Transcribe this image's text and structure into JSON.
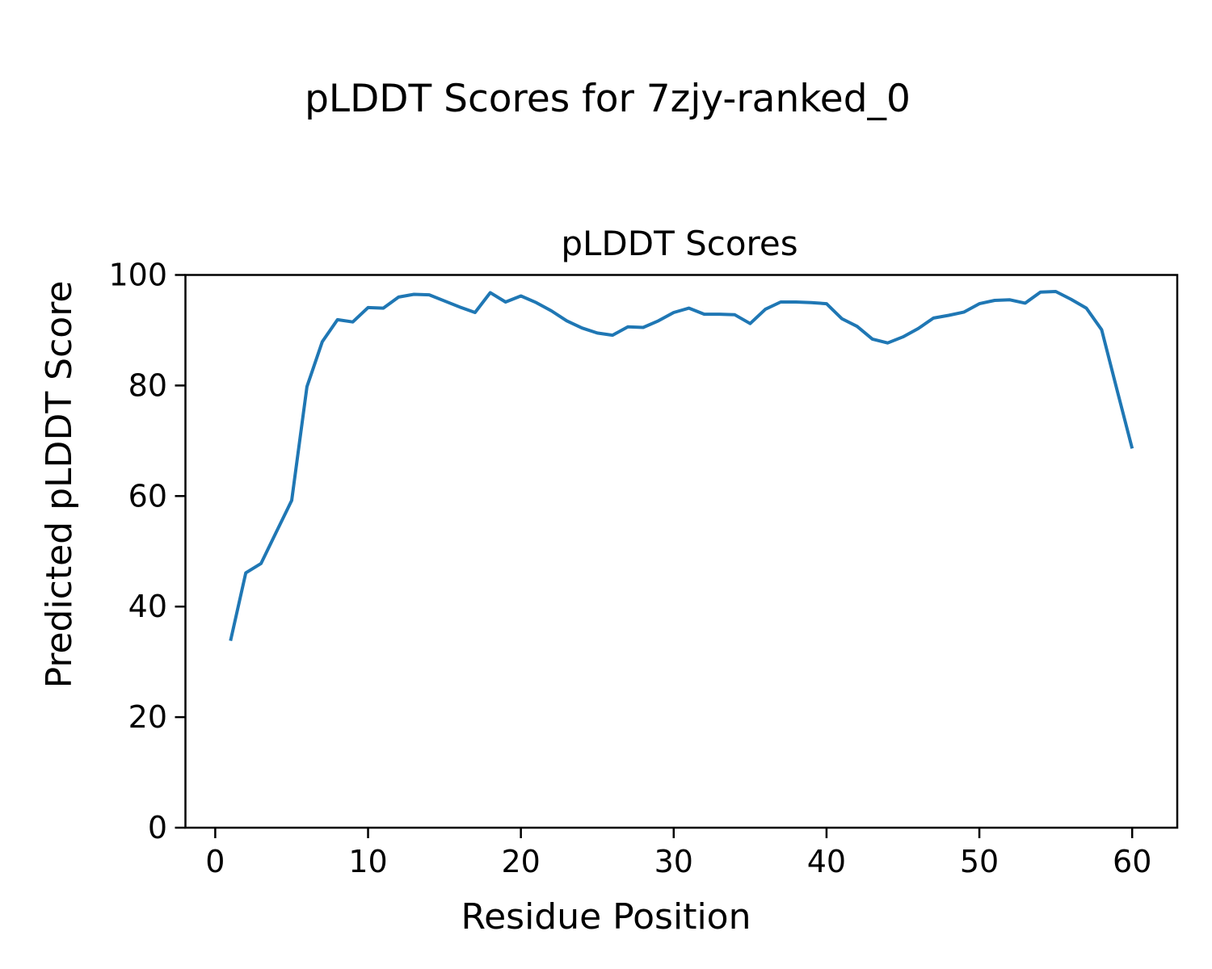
{
  "figure": {
    "suptitle": "pLDDT Scores for 7zjy-ranked_0"
  },
  "chart_data": {
    "type": "line",
    "title": "pLDDT Scores",
    "xlabel": "Residue Position",
    "ylabel": "Predicted pLDDT Score",
    "x": [
      1,
      2,
      3,
      4,
      5,
      6,
      7,
      8,
      9,
      10,
      11,
      12,
      13,
      14,
      15,
      16,
      17,
      18,
      19,
      20,
      21,
      22,
      23,
      24,
      25,
      26,
      27,
      28,
      29,
      30,
      31,
      32,
      33,
      34,
      35,
      36,
      37,
      38,
      39,
      40,
      41,
      42,
      43,
      44,
      45,
      46,
      47,
      48,
      49,
      50,
      51,
      52,
      53,
      54,
      55,
      56,
      57,
      58,
      59,
      60
    ],
    "series": [
      {
        "name": "pLDDT",
        "values": [
          33.8,
          46.1,
          47.8,
          53.5,
          59.2,
          79.8,
          87.9,
          91.9,
          91.5,
          94.1,
          94.0,
          96.0,
          96.5,
          96.4,
          95.3,
          94.2,
          93.2,
          96.8,
          95.1,
          96.2,
          95.0,
          93.5,
          91.7,
          90.4,
          89.5,
          89.1,
          90.6,
          90.5,
          91.7,
          93.2,
          94.0,
          92.9,
          92.9,
          92.8,
          91.2,
          93.8,
          95.1,
          95.1,
          95.0,
          94.8,
          92.1,
          90.7,
          88.4,
          87.7,
          88.8,
          90.3,
          92.2,
          92.7,
          93.3,
          94.8,
          95.4,
          95.5,
          94.9,
          96.9,
          97.0,
          95.6,
          94.0,
          90.1,
          79.3,
          68.6
        ]
      }
    ],
    "xlim": [
      -1.95,
      62.95
    ],
    "ylim": [
      0,
      100
    ],
    "x_ticks": [
      0,
      10,
      20,
      30,
      40,
      50,
      60
    ],
    "y_ticks": [
      0,
      20,
      40,
      60,
      80,
      100
    ],
    "grid": false,
    "legend": "none",
    "line_color": "#1f77b4",
    "line_width": 4
  }
}
